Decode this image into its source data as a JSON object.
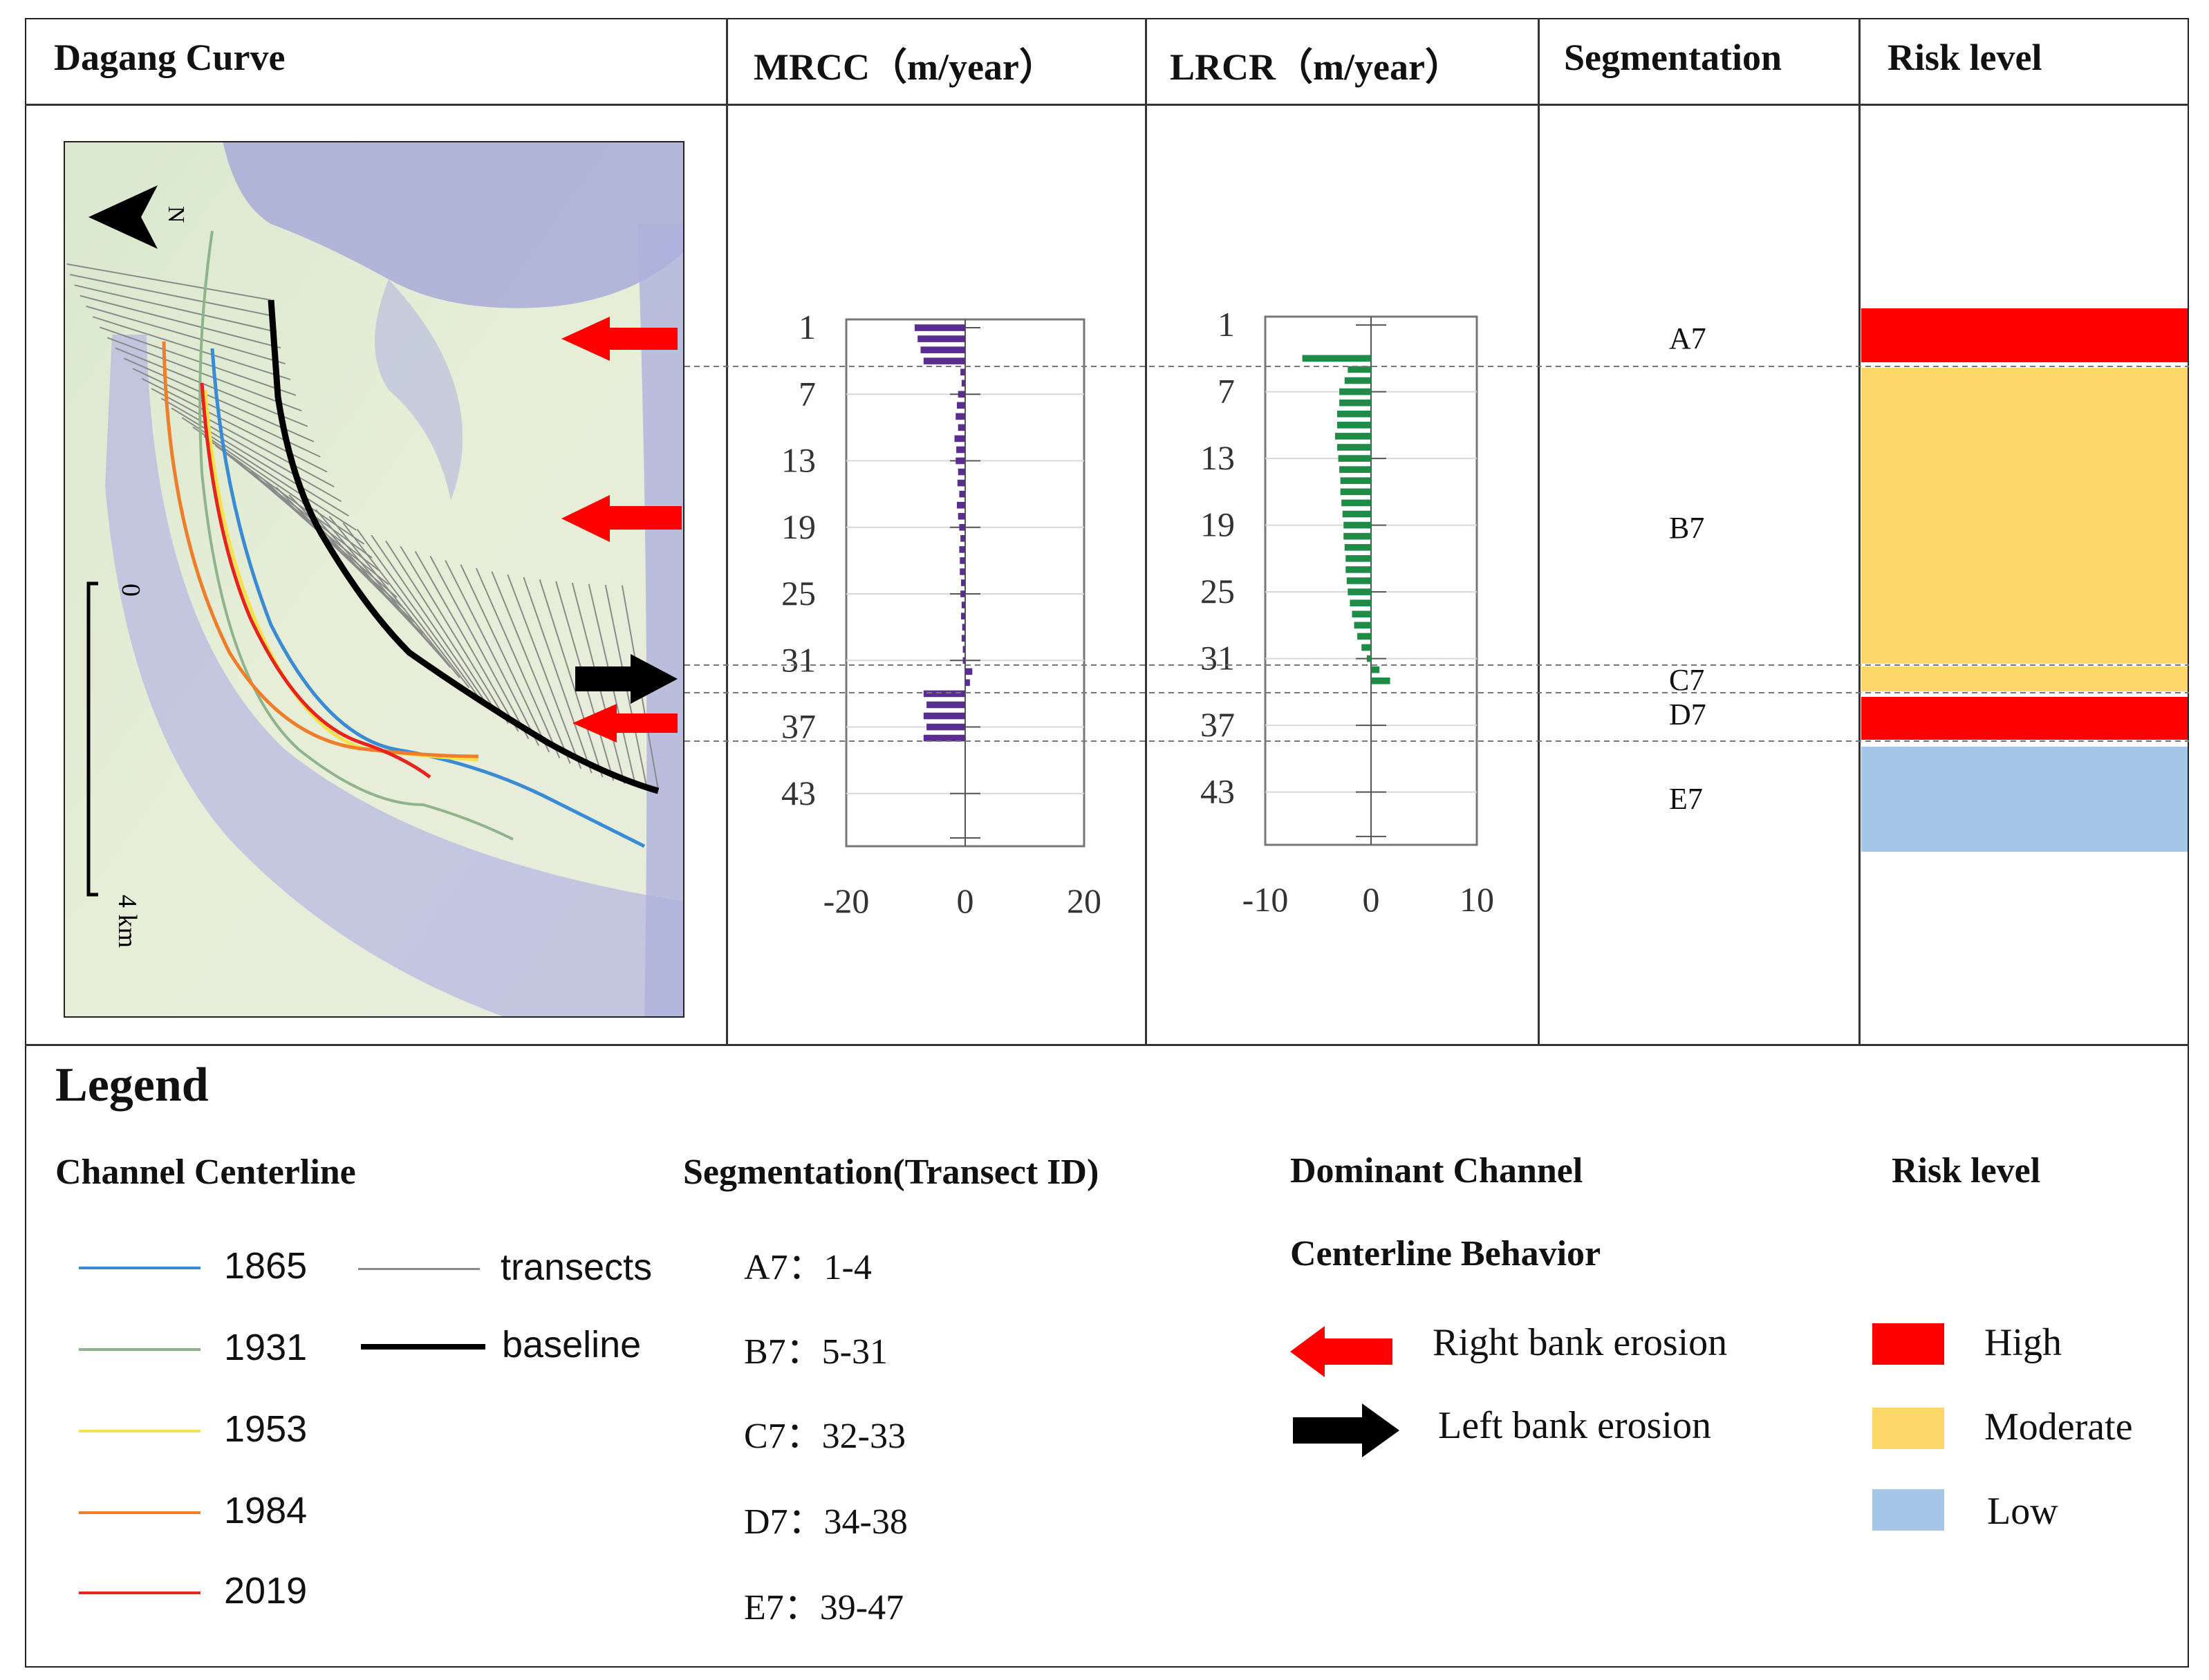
{
  "headers": {
    "map": "Dagang Curve",
    "mrcc": "MRCC（m/year）",
    "lrcr": "LRCR（m/year）",
    "segmentation": "Segmentation",
    "risk": "Risk level"
  },
  "map": {
    "north_label": "N",
    "scale_start": "0",
    "scale_end": "4 km"
  },
  "chart_data": [
    {
      "type": "bar",
      "orientation": "horizontal",
      "title": "MRCC（m/year）",
      "color": "#5a2d91",
      "ytick_labels": [
        "1",
        "7",
        "13",
        "19",
        "25",
        "31",
        "37",
        "43"
      ],
      "xtick_labels": [
        "-20",
        "0",
        "20"
      ],
      "xlim": [
        -20,
        20
      ],
      "categories": [
        1,
        2,
        3,
        4,
        5,
        6,
        7,
        8,
        9,
        10,
        11,
        12,
        13,
        14,
        15,
        16,
        17,
        18,
        19,
        20,
        21,
        22,
        23,
        24,
        25,
        26,
        27,
        28,
        29,
        30,
        31,
        32,
        33,
        34,
        35,
        36,
        37,
        38,
        39,
        40,
        41,
        42,
        43,
        44,
        45,
        46,
        47
      ],
      "values": [
        -8.5,
        -8,
        -7.5,
        -7,
        -0.8,
        -0.6,
        -1.2,
        -1.4,
        -1.6,
        -1.2,
        -1.8,
        -1.5,
        -1.6,
        -1.2,
        -1.3,
        -1.0,
        -1.4,
        -1.2,
        -1.0,
        -0.8,
        -1.0,
        -0.9,
        -0.9,
        -0.7,
        -0.8,
        -0.6,
        -0.7,
        -0.5,
        -0.6,
        -0.4,
        -0.4,
        1.2,
        0.8,
        -7,
        -6.5,
        -7,
        -6.5,
        -7,
        0,
        0,
        0,
        0,
        0,
        0,
        0,
        0,
        0
      ]
    },
    {
      "type": "bar",
      "orientation": "horizontal",
      "title": "LRCR（m/year）",
      "color": "#1e8c46",
      "ytick_labels": [
        "1",
        "7",
        "13",
        "19",
        "25",
        "31",
        "37",
        "43"
      ],
      "xtick_labels": [
        "-10",
        "0",
        "10"
      ],
      "xlim": [
        -10,
        10
      ],
      "categories": [
        1,
        2,
        3,
        4,
        5,
        6,
        7,
        8,
        9,
        10,
        11,
        12,
        13,
        14,
        15,
        16,
        17,
        18,
        19,
        20,
        21,
        22,
        23,
        24,
        25,
        26,
        27,
        28,
        29,
        30,
        31,
        32,
        33,
        34,
        35,
        36,
        37,
        38,
        39,
        40,
        41,
        42,
        43,
        44,
        45,
        46,
        47
      ],
      "values": [
        0,
        0,
        0,
        -6.5,
        -2.2,
        -2.5,
        -3,
        -3,
        -3.2,
        -3.2,
        -3.4,
        -3.2,
        -3.1,
        -3,
        -2.9,
        -2.9,
        -2.8,
        -2.7,
        -2.6,
        -2.6,
        -2.5,
        -2.4,
        -2.4,
        -2.3,
        -2.2,
        -2.0,
        -1.8,
        -1.6,
        -1.3,
        -0.9,
        -0.4,
        0.8,
        1.8,
        0,
        0,
        0,
        0,
        0,
        0,
        0,
        0,
        0,
        0,
        0,
        0,
        0,
        0
      ]
    }
  ],
  "segments": [
    {
      "id": "A7",
      "risk": "High",
      "color": "#ff0000"
    },
    {
      "id": "B7",
      "risk": "Moderate",
      "color": "#fdd76a"
    },
    {
      "id": "C7",
      "risk": "Moderate",
      "color": "#fdd76a"
    },
    {
      "id": "D7",
      "risk": "High",
      "color": "#ff0000"
    },
    {
      "id": "E7",
      "risk": "Low",
      "color": "#a5c6e6"
    }
  ],
  "legend": {
    "title": "Legend",
    "centerline": {
      "title": "Channel Centerline",
      "items": [
        {
          "label": "1865",
          "color": "#3a8bd6"
        },
        {
          "label": "1931",
          "color": "#8fb38a"
        },
        {
          "label": "1953",
          "color": "#f5e24a"
        },
        {
          "label": "1984",
          "color": "#f07d2a"
        },
        {
          "label": "2019",
          "color": "#e8231e"
        }
      ],
      "transects_label": "transects",
      "baseline_label": "baseline"
    },
    "segmentation": {
      "title": "Segmentation(Transect ID)",
      "items": [
        "A7：1-4",
        "B7：5-31",
        "C7：32-33",
        "D7：34-38",
        "E7：39-47"
      ]
    },
    "behavior": {
      "title_line1": "Dominant Channel",
      "title_line2": "Centerline Behavior",
      "right": "Right bank erosion",
      "left": "Left bank erosion",
      "right_color": "#ff0000",
      "left_color": "#000000"
    },
    "risk": {
      "title": "Risk level",
      "items": [
        {
          "label": "High",
          "color": "#ff0000"
        },
        {
          "label": "Moderate",
          "color": "#fdd76a"
        },
        {
          "label": "Low",
          "color": "#a5c6e6"
        }
      ]
    }
  }
}
